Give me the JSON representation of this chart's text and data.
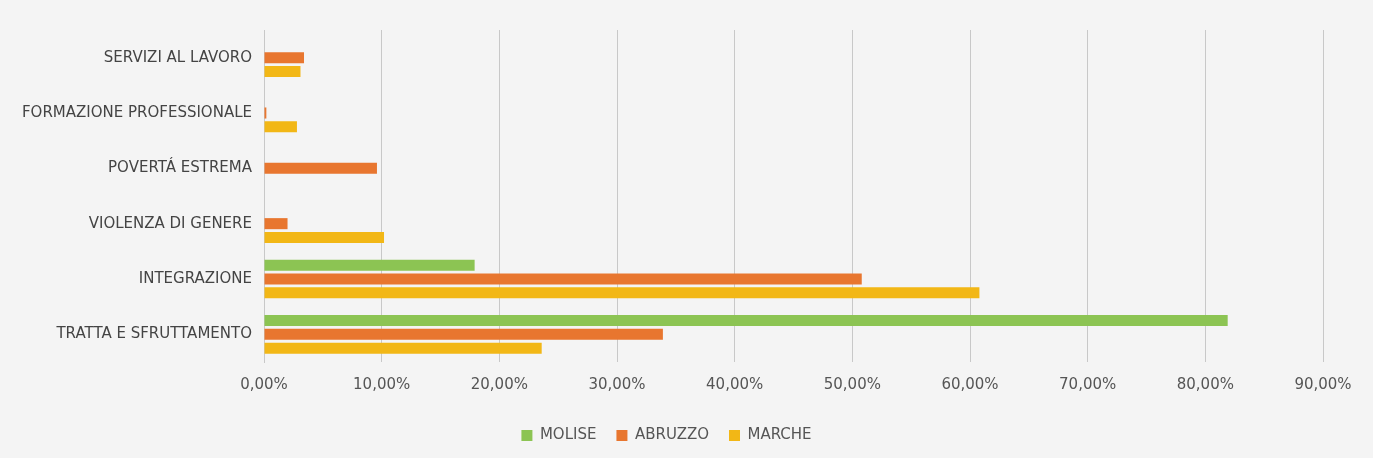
{
  "chart_data": {
    "type": "bar",
    "orientation": "horizontal",
    "categories": [
      "SERVIZI AL LAVORO",
      "FORMAZIONE PROFESSIONALE",
      "POVERTÁ ESTREMA",
      "VIOLENZA DI GENERE",
      "INTEGRAZIONE",
      "TRATTA E SFRUTTAMENTO"
    ],
    "series": [
      {
        "name": "MOLISE",
        "color": "#8cc453",
        "values": [
          0,
          0,
          0,
          0,
          17.9,
          81.9
        ]
      },
      {
        "name": "ABRUZZO",
        "color": "#e8762f",
        "values": [
          3.4,
          0.2,
          9.6,
          2,
          50.8,
          33.9
        ]
      },
      {
        "name": "MARCHE",
        "color": "#f2b716",
        "values": [
          3.1,
          2.8,
          0,
          10.2,
          60.8,
          23.6
        ]
      }
    ],
    "xlim": [
      0,
      90
    ],
    "xticks": [
      {
        "value": 0,
        "label": "0,00%"
      },
      {
        "value": 10,
        "label": "10,00%"
      },
      {
        "value": 20,
        "label": "20,00%"
      },
      {
        "value": 30,
        "label": "30,00%"
      },
      {
        "value": 40,
        "label": "40,00%"
      },
      {
        "value": 50,
        "label": "50,00%"
      },
      {
        "value": 60,
        "label": "60,00%"
      },
      {
        "value": 70,
        "label": "70,00%"
      },
      {
        "value": 80,
        "label": "80,00%"
      },
      {
        "value": 90,
        "label": "90,00%"
      }
    ],
    "grid": "x",
    "legend": "bottom"
  }
}
